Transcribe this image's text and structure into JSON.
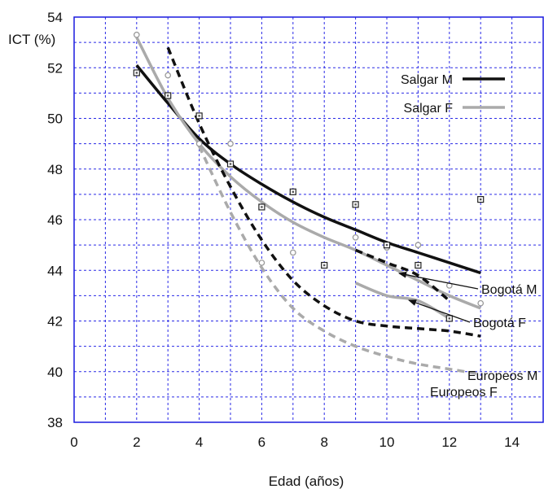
{
  "chart_data": {
    "type": "line",
    "title": "",
    "xlabel": "Edad (años)",
    "ylabel": "ICT (%)",
    "xlim": [
      0,
      15
    ],
    "ylim": [
      38,
      54
    ],
    "xticks": [
      0,
      2,
      4,
      6,
      8,
      10,
      12,
      14
    ],
    "yticks": [
      38,
      40,
      42,
      44,
      46,
      48,
      50,
      52,
      54
    ],
    "grid": true,
    "legend_placement": "top-right",
    "series": [
      {
        "name": "Salgar M",
        "style": "solid",
        "color": "#111111",
        "x": [
          2,
          3,
          4,
          5,
          6,
          7,
          8,
          9,
          10,
          11,
          12,
          13
        ],
        "y": [
          52.1,
          50.6,
          49.2,
          48.2,
          47.4,
          46.7,
          46.1,
          45.6,
          45.1,
          44.7,
          44.3,
          43.9
        ]
      },
      {
        "name": "Salgar F",
        "style": "solid",
        "color": "#aaaaaa",
        "x": [
          2,
          3,
          4,
          5,
          6,
          7,
          8,
          9,
          10,
          11,
          12,
          13
        ],
        "y": [
          53.2,
          50.8,
          49.0,
          47.7,
          46.7,
          45.9,
          45.3,
          44.8,
          44.2,
          43.6,
          43.0,
          42.5
        ]
      },
      {
        "name": "Bogotá M",
        "style": "dashed",
        "color": "#111111",
        "x": [
          9,
          10,
          11,
          12
        ],
        "y": [
          44.8,
          44.3,
          43.8,
          42.8
        ]
      },
      {
        "name": "Bogotá F",
        "style": "solid",
        "color": "#aaaaaa",
        "x": [
          9,
          10,
          11,
          12
        ],
        "y": [
          43.5,
          43.0,
          42.8,
          42.1
        ]
      },
      {
        "name": "Europeos M",
        "style": "dashed",
        "color": "#111111",
        "x": [
          3,
          4,
          5,
          6,
          7,
          8,
          9,
          10,
          11,
          12,
          13
        ],
        "y": [
          52.8,
          49.8,
          47.3,
          45.2,
          43.6,
          42.6,
          42.0,
          41.8,
          41.7,
          41.6,
          41.4
        ]
      },
      {
        "name": "Europeos F",
        "style": "dashed",
        "color": "#aaaaaa",
        "x": [
          4,
          5,
          6,
          7,
          8,
          9,
          10,
          11,
          12,
          13
        ],
        "y": [
          48.9,
          46.3,
          44.1,
          42.5,
          41.6,
          41.0,
          40.6,
          40.3,
          40.1,
          39.9
        ]
      }
    ],
    "points_square": {
      "x": [
        2,
        3,
        4,
        5,
        6,
        7,
        8,
        9,
        10,
        11,
        12,
        13
      ],
      "y": [
        51.8,
        50.9,
        50.1,
        48.2,
        46.5,
        47.1,
        44.2,
        46.6,
        45.0,
        44.2,
        42.1,
        46.8
      ]
    },
    "points_circle": {
      "x": [
        2,
        3,
        4,
        5,
        6,
        7,
        8,
        9,
        10,
        11,
        12,
        13
      ],
      "y": [
        53.3,
        51.7,
        49.0,
        49.0,
        44.3,
        44.7,
        44.2,
        45.3,
        44.9,
        45.0,
        43.4,
        42.7
      ]
    },
    "legend": [
      {
        "label": "Salgar M",
        "series": 0
      },
      {
        "label": "Salgar F",
        "series": 1
      }
    ],
    "annotations": [
      {
        "label": "Bogotá M",
        "series": 2
      },
      {
        "label": "Bogotá F",
        "series": 3
      },
      {
        "label": "Europeos M",
        "series": 4
      },
      {
        "label": "Europeos F",
        "series": 5
      }
    ]
  }
}
